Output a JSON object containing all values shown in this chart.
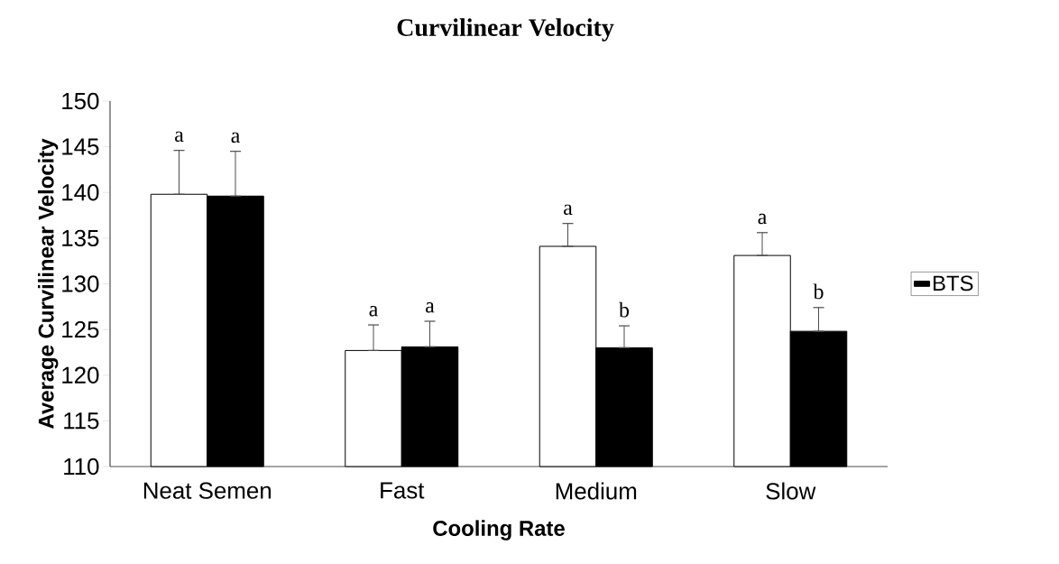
{
  "chart_data": {
    "type": "bar",
    "title": "Curvilinear Velocity",
    "xlabel": "Cooling Rate",
    "ylabel": "Average Curvilinear Velocity",
    "categories": [
      "Neat Semen",
      "Fast",
      "Medium",
      "Slow"
    ],
    "series": [
      {
        "color": "#ffffff",
        "values": [
          139.8,
          122.7,
          134.1,
          133.1
        ],
        "errors": [
          [
            139.8,
            144.6
          ],
          [
            122.7,
            125.5
          ],
          [
            134.1,
            136.6
          ],
          [
            133.1,
            135.6
          ]
        ],
        "value_labels": [
          "a",
          "a",
          "a",
          "a"
        ]
      },
      {
        "name": "BTS",
        "color": "#000000",
        "values": [
          139.6,
          123.1,
          123.0,
          124.8
        ],
        "errors": [
          [
            139.6,
            144.5
          ],
          [
            123.1,
            125.9
          ],
          [
            123.0,
            125.4
          ],
          [
            124.8,
            127.4
          ]
        ],
        "value_labels": [
          "a",
          "a",
          "b",
          "b"
        ]
      }
    ],
    "ylim": [
      110,
      150
    ],
    "yticks": [
      110,
      115,
      120,
      125,
      130,
      135,
      140,
      145,
      150
    ],
    "legend": "right",
    "grid": false
  }
}
